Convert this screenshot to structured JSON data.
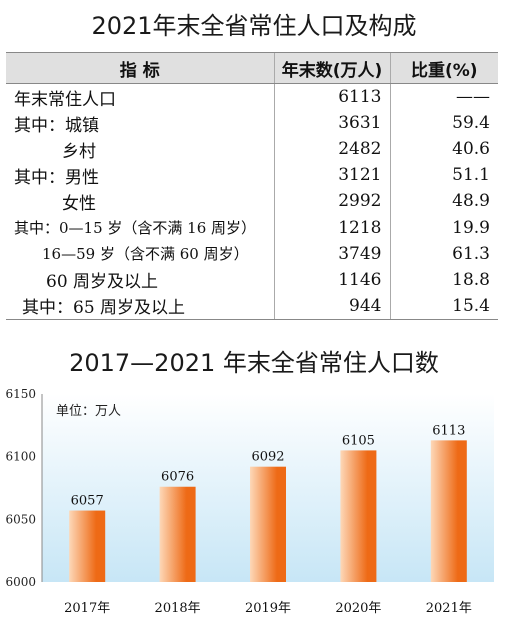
{
  "table": {
    "title": "2021年末全省常住人口及构成",
    "headers": [
      "指 标",
      "年末数(万人)",
      "比重(%)"
    ],
    "rows": [
      {
        "label": "年末常住人口",
        "value": "6113",
        "share": "——"
      },
      {
        "label": "其中：城镇",
        "value": "3631",
        "share": "59.4"
      },
      {
        "label": "乡村",
        "value": "2482",
        "share": "40.6"
      },
      {
        "label": "其中：男性",
        "value": "3121",
        "share": "51.1"
      },
      {
        "label": "女性",
        "value": "2992",
        "share": "48.9"
      },
      {
        "label": "其中：0—15 岁（含不满 16 周岁）",
        "value": "1218",
        "share": "19.9"
      },
      {
        "label": "16—59 岁（含不满 60 周岁）",
        "value": "3749",
        "share": "61.3"
      },
      {
        "label": "60 周岁及以上",
        "value": "1146",
        "share": "18.8"
      },
      {
        "label": "其中：65 周岁及以上",
        "value": "944",
        "share": "15.4"
      }
    ]
  },
  "chart_data": {
    "type": "bar",
    "title": "2017—2021 年末全省常住人口数",
    "unit_label": "单位：万人",
    "categories": [
      "2017年",
      "2018年",
      "2019年",
      "2020年",
      "2021年"
    ],
    "values": [
      6057,
      6076,
      6092,
      6105,
      6113
    ],
    "ylim": [
      6000,
      6150
    ],
    "yticks": [
      6000,
      6050,
      6100,
      6150
    ],
    "grid": false,
    "colors": {
      "plot_bg_top": "#ffffff",
      "plot_bg_bottom": "#c7e6f6",
      "bar_light": "#fdd8b8",
      "bar_dark": "#ee6a16"
    }
  }
}
